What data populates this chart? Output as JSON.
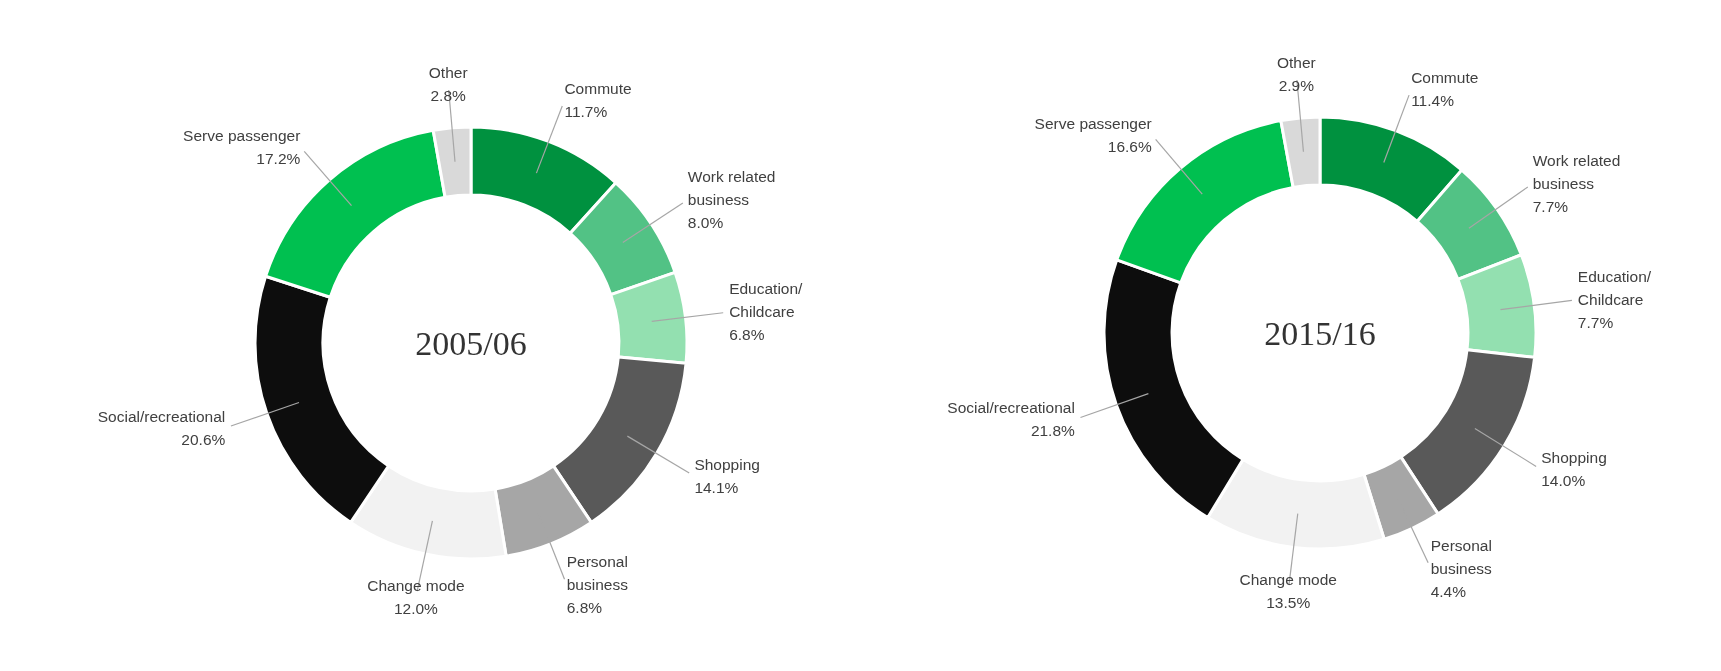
{
  "chart_data": [
    {
      "type": "donut",
      "title": "2005/06",
      "categories": [
        "Commute",
        "Work related business",
        "Education/ Childcare",
        "Shopping",
        "Personal business",
        "Change mode",
        "Social/recreational",
        "Serve passenger",
        "Other"
      ],
      "values": [
        11.7,
        8.0,
        6.8,
        14.1,
        6.8,
        12.0,
        20.6,
        17.2,
        2.8
      ],
      "value_labels": [
        "11.7%",
        "8.0%",
        "6.8%",
        "14.1%",
        "6.8%",
        "12.0%",
        "20.6%",
        "17.2%",
        "2.8%"
      ],
      "colors": [
        "#00913f",
        "#52c285",
        "#93e0b0",
        "#595959",
        "#a6a6a6",
        "#f2f2f2",
        "#0d0d0d",
        "#00c050",
        "#d9d9d9"
      ]
    },
    {
      "type": "donut",
      "title": "2015/16",
      "categories": [
        "Commute",
        "Work related business",
        "Education/ Childcare",
        "Shopping",
        "Personal business",
        "Change mode",
        "Social/recreational",
        "Serve passenger",
        "Other"
      ],
      "values": [
        11.4,
        7.7,
        7.7,
        14.0,
        4.4,
        13.5,
        21.8,
        16.6,
        2.9
      ],
      "value_labels": [
        "11.4%",
        "7.7%",
        "7.7%",
        "14.0%",
        "4.4%",
        "13.5%",
        "21.8%",
        "16.6%",
        "2.9%"
      ],
      "colors": [
        "#00913f",
        "#52c285",
        "#93e0b0",
        "#595959",
        "#a6a6a6",
        "#f2f2f2",
        "#0d0d0d",
        "#00c050",
        "#d9d9d9"
      ]
    }
  ]
}
